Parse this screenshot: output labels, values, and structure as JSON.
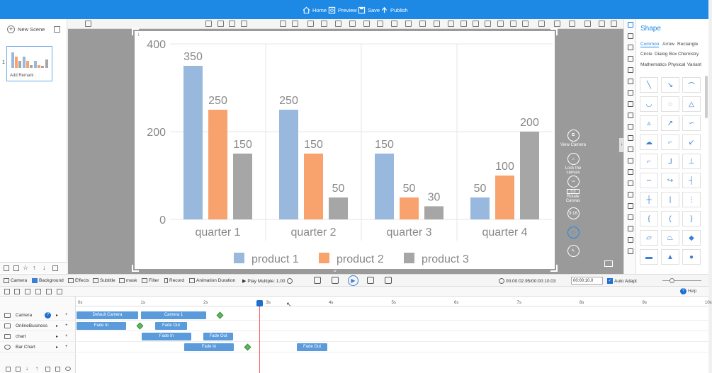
{
  "topbar": {
    "home": "Home",
    "preview": "Preview",
    "save": "Save",
    "publish": "Publish"
  },
  "leftpanel": {
    "new_scene": "New Scene",
    "scene_number": "1",
    "thumb_caption": "Add Remark"
  },
  "canvas": {
    "corner_label": "1"
  },
  "right_tools": {
    "view_camera": "View Camera",
    "lock_canvas": "Lock the canvas",
    "rotate_value": "0.0",
    "rotate_canvas": "Rotate Canvas",
    "ratio": "9:16",
    "colors": {
      "circle_border": "#ffffff"
    }
  },
  "shape_panel": {
    "title": "Shape",
    "tabs_row1": [
      "Common",
      "Arrow",
      "Rectangle"
    ],
    "tabs_row2": [
      "Circle",
      "Dialog Box",
      "Chemistry"
    ],
    "tabs_row3": [
      "Mathematics",
      "Physical",
      "Variant"
    ],
    "shape_glyphs": [
      "╲",
      "↘",
      "⌒",
      "◡",
      "◌",
      "△",
      "▵",
      "↗",
      "∽",
      "☁",
      "⌐",
      "↙",
      "⌐",
      "⅃",
      "⊥",
      "∼",
      "↪",
      "┤",
      "┼",
      "|",
      "⋮",
      "{",
      "(",
      "}",
      "▱",
      "⏢",
      "◆",
      "▬",
      "▲",
      "●"
    ]
  },
  "controlbar": {
    "camera": "Camera",
    "background": "Background",
    "effects": "Effects",
    "subtitle": "Subtitle",
    "mask": "mask",
    "filter": "Filter",
    "record": "Record",
    "animation_duration": "Animation Duration",
    "play_multiple": "Play Multiple: 1.00",
    "time": "00:00:02.95/00:00:10.03",
    "duration_field": "00:00:10.0",
    "auto_adapt": "Auto Adapt",
    "help": "Help"
  },
  "timeline": {
    "ruler": [
      "0s",
      "1s",
      "2s",
      "3s",
      "4s",
      "5s",
      "6s",
      "7s",
      "8s",
      "9s",
      "10s"
    ],
    "tracks": [
      {
        "name": "Camera",
        "clips": [
          "Default Camera",
          "Camera 1"
        ]
      },
      {
        "name": "OnlineBusiness",
        "clips": [
          "Fade In",
          "Fade Out"
        ]
      },
      {
        "name": "chart",
        "clips": [
          "Fade In",
          "Fade Out"
        ]
      },
      {
        "name": "Bar Chart",
        "clips": [
          "Fade In",
          "Fade Out"
        ]
      }
    ]
  },
  "chart_data": {
    "type": "bar",
    "categories": [
      "quarter 1",
      "quarter 2",
      "quarter 3",
      "quarter 4"
    ],
    "series": [
      {
        "name": "product 1",
        "values": [
          350,
          250,
          150,
          50
        ],
        "color": "#98b9dd"
      },
      {
        "name": "product 2",
        "values": [
          250,
          150,
          50,
          100
        ],
        "color": "#f8a36e"
      },
      {
        "name": "product 3",
        "values": [
          150,
          50,
          30,
          200
        ],
        "color": "#a6a6a6"
      }
    ],
    "y_ticks": [
      0,
      200,
      400
    ],
    "ylim": [
      0,
      400
    ],
    "title": "",
    "xlabel": "",
    "ylabel": "",
    "grid": true,
    "legend": "bottom"
  }
}
